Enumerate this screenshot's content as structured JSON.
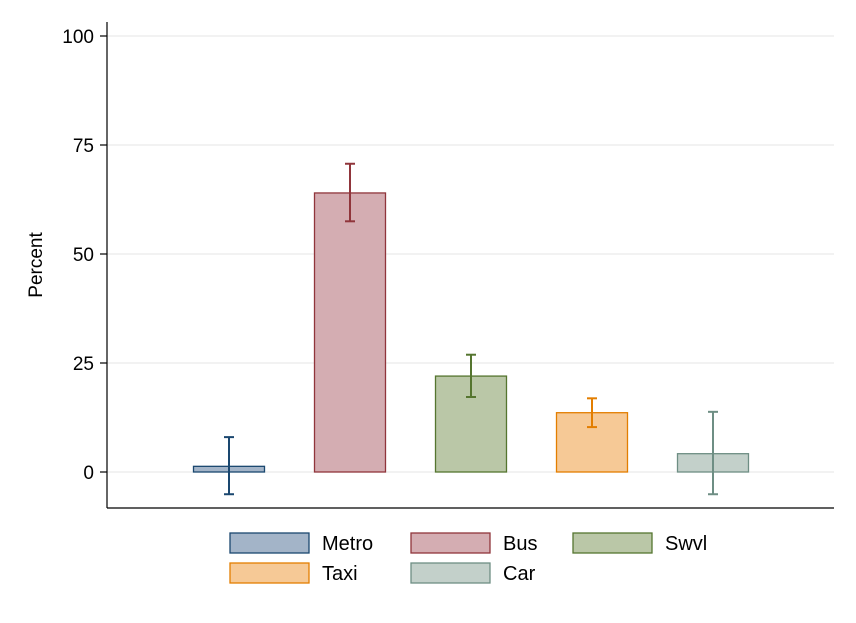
{
  "chart_data": {
    "type": "bar",
    "title": "",
    "xlabel": "",
    "ylabel": "Percent",
    "ylim": [
      -8,
      103
    ],
    "yticks": [
      0,
      25,
      50,
      75,
      100
    ],
    "grid": true,
    "legend_position": "bottom",
    "categories": [
      "Metro",
      "Bus",
      "Swvl",
      "Taxi",
      "Car"
    ],
    "values": [
      1.3,
      64,
      22,
      13.6,
      4.2
    ],
    "error_low": [
      -5.1,
      57.5,
      17.2,
      10.3,
      -5.1
    ],
    "error_high": [
      8,
      70.7,
      26.9,
      16.9,
      13.8
    ],
    "fill_colors": [
      "#a3b4c8",
      "#d4adb2",
      "#bac7a7",
      "#f6c996",
      "#c3d0ca"
    ],
    "edge_colors": [
      "#1a476f",
      "#90353b",
      "#55752f",
      "#e37e00",
      "#6e8e84"
    ]
  }
}
